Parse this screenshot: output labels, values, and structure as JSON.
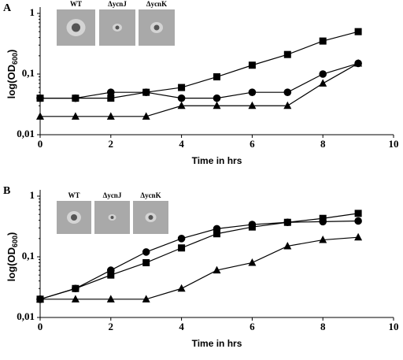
{
  "chart_data": [
    {
      "type": "line",
      "panel": "A",
      "x_label": "Time in hrs",
      "y_label": [
        "log(OD",
        "600",
        ")"
      ],
      "insets": [
        "WT",
        "ΔycnJ",
        "ΔycnK"
      ],
      "x": [
        0,
        1,
        2,
        3,
        4,
        5,
        6,
        7,
        8,
        9
      ],
      "series": [
        {
          "marker": "square",
          "color": "#000",
          "values": [
            0.04,
            0.04,
            0.04,
            0.05,
            0.06,
            0.09,
            0.14,
            0.21,
            0.35,
            0.5
          ]
        },
        {
          "marker": "circle",
          "color": "#000",
          "values": [
            0.04,
            0.04,
            0.05,
            0.05,
            0.04,
            0.04,
            0.05,
            0.05,
            0.1,
            0.15
          ]
        },
        {
          "marker": "triangle",
          "color": "#000",
          "values": [
            0.02,
            0.02,
            0.02,
            0.02,
            0.03,
            0.03,
            0.03,
            0.03,
            0.07,
            0.15
          ]
        }
      ],
      "xlim": [
        0,
        10
      ],
      "xticks": [
        0,
        2,
        4,
        6,
        8,
        10
      ],
      "ylim": [
        0.01,
        1
      ],
      "log_y": true,
      "yticks": [
        {
          "value": 0.01,
          "label": "0,01"
        },
        {
          "value": 0.1,
          "label": "0,1"
        },
        1
      ]
    },
    {
      "type": "line",
      "panel": "B",
      "x_label": "Time in hrs",
      "y_label": [
        "log(OD",
        "600",
        ")"
      ],
      "insets": [
        "WT",
        "ΔycnJ",
        "ΔycnK"
      ],
      "x": [
        0,
        1,
        2,
        3,
        4,
        5,
        6,
        7,
        8,
        9
      ],
      "series": [
        {
          "marker": "square",
          "color": "#000",
          "values": [
            0.02,
            0.03,
            0.05,
            0.08,
            0.14,
            0.24,
            0.31,
            0.37,
            0.43,
            0.52
          ]
        },
        {
          "marker": "circle",
          "color": "#000",
          "values": [
            0.02,
            0.03,
            0.06,
            0.12,
            0.2,
            0.29,
            0.34,
            0.37,
            0.38,
            0.39
          ]
        },
        {
          "marker": "triangle",
          "color": "#000",
          "values": [
            0.02,
            0.02,
            0.02,
            0.02,
            0.03,
            0.06,
            0.08,
            0.15,
            0.19,
            0.21
          ]
        }
      ],
      "xlim": [
        0,
        10
      ],
      "xticks": [
        0,
        2,
        4,
        6,
        8,
        10
      ],
      "ylim": [
        0.01,
        1
      ],
      "log_y": true,
      "yticks": [
        {
          "value": 0.01,
          "label": "0,01"
        },
        {
          "value": 0.1,
          "label": "0,1"
        },
        1
      ]
    }
  ]
}
